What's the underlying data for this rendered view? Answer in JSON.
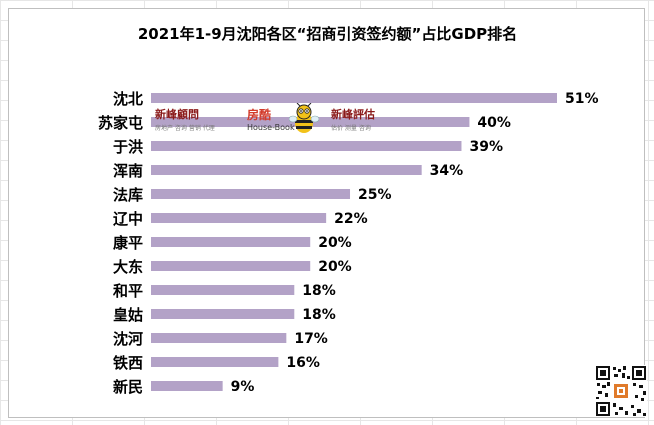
{
  "chart_data": {
    "type": "bar",
    "orientation": "horizontal",
    "title": "2021年1-9月沈阳各区“招商引资签约额”占比GDP排名",
    "categories": [
      "沈北",
      "苏家屯",
      "于洪",
      "浑南",
      "法库",
      "辽中",
      "康平",
      "大东",
      "和平",
      "皇姑",
      "沈河",
      "铁西",
      "新民"
    ],
    "values": [
      51,
      40,
      39,
      34,
      25,
      22,
      20,
      20,
      18,
      18,
      17,
      16,
      9
    ],
    "value_labels": [
      "51%",
      "40%",
      "39%",
      "34%",
      "25%",
      "22%",
      "20%",
      "20%",
      "18%",
      "18%",
      "17%",
      "16%",
      "9%"
    ],
    "unit": "%",
    "xlim": [
      0,
      51
    ],
    "bar_color": "#b3a2c7",
    "grid": false,
    "legend": "none"
  },
  "watermarks": {
    "logo1_name": "新峰顧問",
    "logo1_sub": "房地产 咨询 营销 代理",
    "logo2_name": "房酷",
    "logo2_sub": "House-Book",
    "logo3_name": "新峰評估",
    "logo3_sub": "估价 测量 咨询"
  },
  "icons": {
    "mascot": "bee-mascot-icon",
    "qr": "qr-code-icon"
  }
}
